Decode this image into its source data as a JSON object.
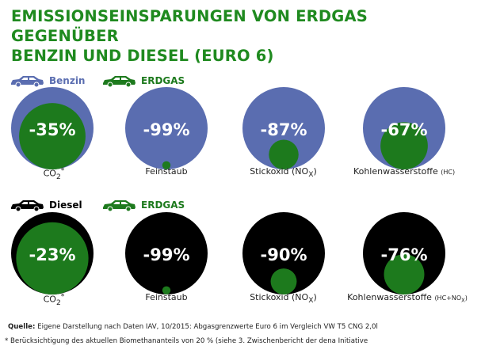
{
  "title_line1": "EMISSIONSEINSPARUNGEN VON ERDGAS GEGENÜBER",
  "title_line2": "BENZIN UND DIESEL (EURO 6)",
  "colors": {
    "title": "#1f8a1f",
    "benzin": "#5a6db0",
    "diesel": "#000000",
    "erdgas": "#1d7a1d",
    "label_white": "#ffffff"
  },
  "legend_row1": {
    "base_label": "Benzin",
    "gas_label": "ERDGAS",
    "base_icon": "car-icon",
    "gas_icon": "car-icon"
  },
  "legend_row2": {
    "base_label": "Diesel",
    "gas_label": "ERDGAS",
    "base_icon": "car-icon",
    "gas_icon": "car-icon"
  },
  "chart_data": [
    {
      "type": "bubble",
      "baseline": "Benzin",
      "categories": [
        "CO2*",
        "Feinstaub",
        "Stickoxid (NOX)",
        "Kohlenwasserstoffe (HC)"
      ],
      "values": [
        -35,
        -99,
        -87,
        -67
      ],
      "labels": [
        "-35%",
        "-99%",
        "-87%",
        "-67%"
      ]
    },
    {
      "type": "bubble",
      "baseline": "Diesel",
      "categories": [
        "CO2*",
        "Feinstaub",
        "Stickoxid (NOX)",
        "Kohlenwasserstoffe (HC+NOX)"
      ],
      "values": [
        -23,
        -99,
        -90,
        -76
      ],
      "labels": [
        "-23%",
        "-99%",
        "-90%",
        "-76%"
      ]
    }
  ],
  "captions_row1": {
    "c1_main": "CO",
    "c1_sub": "2",
    "c1_sup": "*",
    "c2": "Feinstaub",
    "c3_main": "Stickoxid (NO",
    "c3_sub": "X",
    "c3_end": ")",
    "c4_main": "Kohlenwasserstoffe ",
    "c4_small": "(HC)"
  },
  "captions_row2": {
    "c1_main": "CO",
    "c1_sub": "2",
    "c1_sup": "*",
    "c2": "Feinstaub",
    "c3_main": "Stickoxid (NO",
    "c3_sub": "X",
    "c3_end": ")",
    "c4_main": "Kohlenwasserstoffe ",
    "c4_small": "(HC+NO",
    "c4_sub": "X",
    "c4_end": ")"
  },
  "source_label": "Quelle:",
  "source_text": " Eigene Darstellung nach Daten IAV, 10/2015: Abgasgrenzwerte Euro 6 im Vergleich VW T5 CNG 2,0l",
  "note_text": "* Berücksichtigung des aktuellen Biomethananteils von 20 % (siehe 3. Zwischenbericht der dena Initiative"
}
